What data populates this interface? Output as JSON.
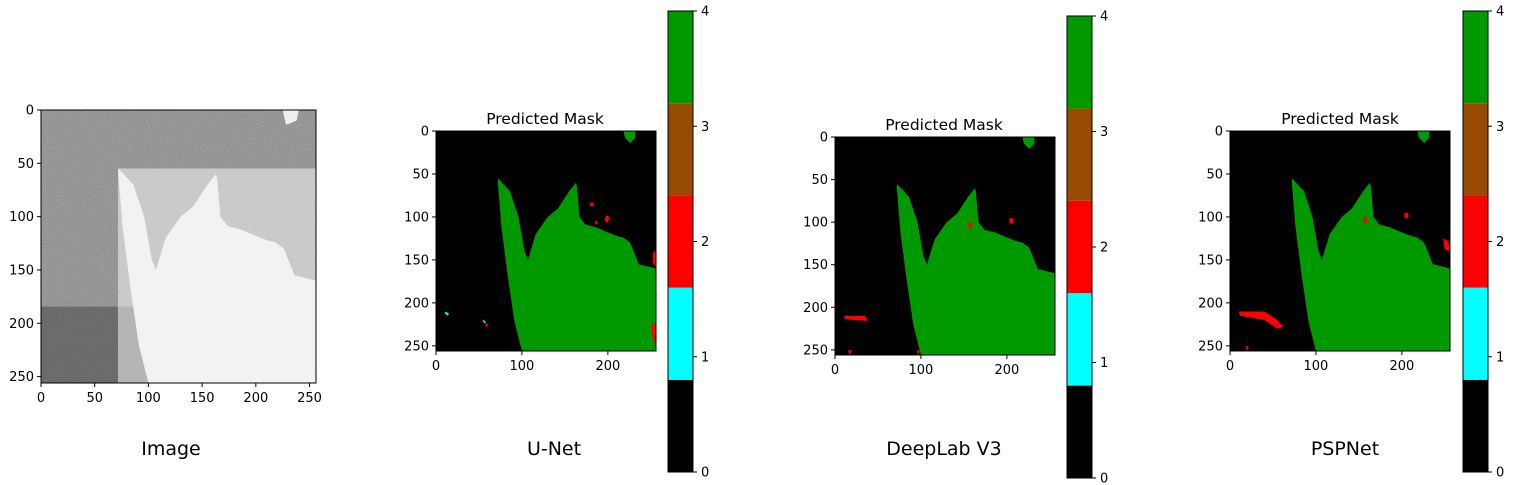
{
  "chart_data": [
    {
      "type": "image",
      "title": "",
      "caption": "Image",
      "xlim": [
        0,
        256
      ],
      "ylim": [
        256,
        0
      ],
      "xticks": [
        0,
        50,
        100,
        150,
        200,
        250
      ],
      "yticks": [
        0,
        50,
        100,
        150,
        200,
        250
      ],
      "has_colorbar": false
    },
    {
      "type": "heatmap",
      "title": "Predicted Mask",
      "caption": "U-Net",
      "xlim": [
        0,
        256
      ],
      "ylim": [
        256,
        0
      ],
      "xticks": [
        0,
        100,
        200
      ],
      "yticks": [
        0,
        50,
        100,
        150,
        200,
        250
      ],
      "has_colorbar": true,
      "regions": [
        {
          "class": 4,
          "points": [
            [
              72,
              55
            ],
            [
              86,
              70
            ],
            [
              96,
              100
            ],
            [
              103,
              140
            ],
            [
              107,
              150
            ],
            [
              116,
              120
            ],
            [
              130,
              100
            ],
            [
              142,
              90
            ],
            [
              155,
              70
            ],
            [
              163,
              60
            ],
            [
              164,
              65
            ],
            [
              167,
              100
            ],
            [
              174,
              109
            ],
            [
              186,
              112
            ],
            [
              200,
              118
            ],
            [
              210,
              122
            ],
            [
              218,
              124
            ],
            [
              226,
              130
            ],
            [
              236,
              155
            ],
            [
              256,
              160
            ],
            [
              256,
              256
            ],
            [
              100,
              256
            ],
            [
              91,
              220
            ],
            [
              83,
              165
            ],
            [
              76,
              110
            ],
            [
              72,
              60
            ]
          ]
        },
        {
          "class": 4,
          "points": [
            [
              218,
              0
            ],
            [
              232,
              0
            ],
            [
              232,
              8
            ],
            [
              226,
              14
            ],
            [
              220,
              8
            ]
          ]
        },
        {
          "class": 2,
          "points": [
            [
              180,
              83
            ],
            [
              184,
              84
            ],
            [
              183,
              88
            ],
            [
              179,
              87
            ]
          ]
        },
        {
          "class": 2,
          "points": [
            [
              198,
              98
            ],
            [
              202,
              100
            ],
            [
              200,
              107
            ],
            [
              196,
              104
            ]
          ]
        },
        {
          "class": 2,
          "points": [
            [
              185,
              104
            ],
            [
              189,
              106
            ],
            [
              186,
              110
            ]
          ]
        },
        {
          "class": 2,
          "points": [
            [
              253,
              140
            ],
            [
              256,
              140
            ],
            [
              256,
              160
            ],
            [
              252,
              152
            ]
          ]
        },
        {
          "class": 2,
          "points": [
            [
              250,
              225
            ],
            [
              256,
              225
            ],
            [
              256,
              250
            ],
            [
              252,
              240
            ]
          ]
        },
        {
          "class": 2,
          "points": [
            [
              57,
              222
            ],
            [
              61,
              226
            ],
            [
              58,
              228
            ]
          ]
        },
        {
          "class": 1,
          "points": [
            [
              10,
              210
            ],
            [
              15,
              212
            ],
            [
              14,
              215
            ],
            [
              11,
              213
            ]
          ]
        },
        {
          "class": 1,
          "points": [
            [
              54,
              219
            ],
            [
              58,
              222
            ],
            [
              56,
              224
            ]
          ]
        }
      ]
    },
    {
      "type": "heatmap",
      "title": "Predicted Mask",
      "caption": "DeepLab V3",
      "xlim": [
        0,
        256
      ],
      "ylim": [
        256,
        0
      ],
      "xticks": [
        0,
        100,
        200
      ],
      "yticks": [
        0,
        50,
        100,
        150,
        200,
        250
      ],
      "has_colorbar": true,
      "regions": [
        {
          "class": 4,
          "points": [
            [
              72,
              55
            ],
            [
              86,
              70
            ],
            [
              96,
              100
            ],
            [
              103,
              140
            ],
            [
              107,
              150
            ],
            [
              116,
              120
            ],
            [
              130,
              100
            ],
            [
              142,
              90
            ],
            [
              155,
              70
            ],
            [
              163,
              60
            ],
            [
              164,
              65
            ],
            [
              167,
              100
            ],
            [
              174,
              109
            ],
            [
              186,
              112
            ],
            [
              200,
              118
            ],
            [
              210,
              122
            ],
            [
              218,
              124
            ],
            [
              226,
              130
            ],
            [
              236,
              155
            ],
            [
              256,
              160
            ],
            [
              256,
              256
            ],
            [
              100,
              256
            ],
            [
              91,
              220
            ],
            [
              83,
              165
            ],
            [
              76,
              110
            ],
            [
              72,
              60
            ]
          ]
        },
        {
          "class": 4,
          "points": [
            [
              218,
              0
            ],
            [
              232,
              0
            ],
            [
              232,
              8
            ],
            [
              226,
              14
            ],
            [
              220,
              8
            ]
          ]
        },
        {
          "class": 2,
          "points": [
            [
              156,
              100
            ],
            [
              160,
              100
            ],
            [
              159,
              108
            ],
            [
              155,
              106
            ]
          ]
        },
        {
          "class": 2,
          "points": [
            [
              203,
              95
            ],
            [
              208,
              96
            ],
            [
              207,
              102
            ],
            [
              203,
              101
            ]
          ]
        },
        {
          "class": 2,
          "points": [
            [
              10,
              210
            ],
            [
              35,
              210
            ],
            [
              38,
              216
            ],
            [
              12,
              214
            ]
          ]
        },
        {
          "class": 2,
          "points": [
            [
              15,
              250
            ],
            [
              20,
              251
            ],
            [
              17,
              256
            ]
          ]
        },
        {
          "class": 2,
          "points": [
            [
              95,
              250
            ],
            [
              99,
              251
            ],
            [
              97,
              256
            ]
          ]
        }
      ]
    },
    {
      "type": "heatmap",
      "title": "Predicted Mask",
      "caption": "PSPNet",
      "xlim": [
        0,
        256
      ],
      "ylim": [
        256,
        0
      ],
      "xticks": [
        0,
        100,
        200
      ],
      "yticks": [
        0,
        50,
        100,
        150,
        200,
        250
      ],
      "has_colorbar": true,
      "regions": [
        {
          "class": 4,
          "points": [
            [
              72,
              55
            ],
            [
              86,
              70
            ],
            [
              96,
              100
            ],
            [
              103,
              140
            ],
            [
              107,
              150
            ],
            [
              116,
              120
            ],
            [
              130,
              100
            ],
            [
              142,
              90
            ],
            [
              155,
              70
            ],
            [
              163,
              60
            ],
            [
              164,
              65
            ],
            [
              167,
              100
            ],
            [
              174,
              109
            ],
            [
              186,
              112
            ],
            [
              200,
              118
            ],
            [
              210,
              122
            ],
            [
              218,
              124
            ],
            [
              226,
              130
            ],
            [
              236,
              155
            ],
            [
              256,
              160
            ],
            [
              256,
              256
            ],
            [
              100,
              256
            ],
            [
              91,
              220
            ],
            [
              83,
              165
            ],
            [
              76,
              110
            ],
            [
              72,
              60
            ]
          ]
        },
        {
          "class": 4,
          "points": [
            [
              218,
              0
            ],
            [
              232,
              0
            ],
            [
              232,
              8
            ],
            [
              226,
              14
            ],
            [
              220,
              8
            ]
          ]
        },
        {
          "class": 2,
          "points": [
            [
              156,
              100
            ],
            [
              160,
              100
            ],
            [
              159,
              108
            ],
            [
              155,
              106
            ]
          ]
        },
        {
          "class": 2,
          "points": [
            [
              203,
              95
            ],
            [
              208,
              96
            ],
            [
              207,
              102
            ],
            [
              203,
              101
            ]
          ]
        },
        {
          "class": 2,
          "points": [
            [
              248,
              125
            ],
            [
              254,
              128
            ],
            [
              256,
              140
            ],
            [
              250,
              138
            ]
          ]
        },
        {
          "class": 2,
          "points": [
            [
              10,
              210
            ],
            [
              40,
              210
            ],
            [
              55,
              220
            ],
            [
              62,
              228
            ],
            [
              55,
              230
            ],
            [
              40,
              220
            ],
            [
              12,
              215
            ]
          ]
        },
        {
          "class": 2,
          "points": [
            [
              18,
              250
            ],
            [
              22,
              251
            ],
            [
              20,
              256
            ]
          ]
        }
      ]
    }
  ],
  "colorbar": {
    "ticks": [
      "0",
      "1",
      "2",
      "3",
      "4"
    ],
    "classes": [
      {
        "value": 0,
        "color": "#000000"
      },
      {
        "value": 1,
        "color": "#00ffff"
      },
      {
        "value": 2,
        "color": "#ff0000"
      },
      {
        "value": 3,
        "color": "#964b00"
      },
      {
        "value": 4,
        "color": "#009900"
      }
    ]
  }
}
